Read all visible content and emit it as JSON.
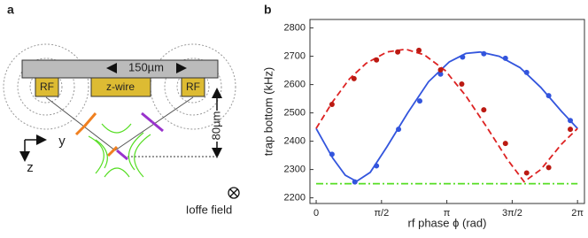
{
  "panel_labels": [
    "a",
    "b"
  ],
  "diagram": {
    "rf_left": "RF",
    "z_wire": "z-wire",
    "rf_right": "RF",
    "width_label": "150µm",
    "height_label": "80µm",
    "axis_y": "y",
    "axis_z": "z",
    "ioffe": "Ioffe field"
  },
  "chart_data": {
    "type": "scatter",
    "y_label": "trap bottom (kHz)",
    "x_label": "rf phase ϕ (rad)",
    "xlim": [
      -0.15,
      6.45
    ],
    "ylim": [
      2180,
      2830
    ],
    "xticks": [
      0,
      {
        "value": 1.5708,
        "label": "π/2"
      },
      {
        "value": 3.1416,
        "label": "π"
      },
      {
        "value": 4.7124,
        "label": "3π/2"
      },
      {
        "value": 6.2832,
        "label": "2π"
      }
    ],
    "yticks": [
      2200,
      2300,
      2400,
      2500,
      2600,
      2700,
      2800
    ],
    "series": [
      {
        "style": "solid",
        "color": "#3355dd",
        "x": [
          0,
          0.4,
          0.7,
          0.97,
          1.3,
          1.7,
          2.2,
          2.7,
          3.2,
          3.6,
          3.94,
          4.4,
          4.9,
          5.4,
          5.9,
          6.2832
        ],
        "values": [
          2445,
          2340,
          2280,
          2258,
          2290,
          2380,
          2500,
          2610,
          2680,
          2710,
          2715,
          2700,
          2660,
          2590,
          2505,
          2445
        ]
      },
      {
        "style": "dashed",
        "color": "#dd2222",
        "x": [
          0,
          0.4,
          0.8,
          1.2,
          1.7,
          2.15,
          2.6,
          3.1,
          3.6,
          4.1,
          4.6,
          5.0,
          5.4,
          5.9,
          6.2832
        ],
        "values": [
          2445,
          2540,
          2620,
          2675,
          2715,
          2725,
          2705,
          2650,
          2560,
          2450,
          2335,
          2257,
          2300,
          2390,
          2445
        ]
      },
      {
        "style": "dashdot",
        "color": "#55dd22",
        "x": [
          0,
          6.2832
        ],
        "values": [
          2250,
          2250
        ]
      },
      {
        "style": "markers",
        "color": "#3355dd",
        "x": [
          0.38,
          0.93,
          1.45,
          1.98,
          2.49,
          2.99,
          3.52,
          4.03,
          4.55,
          5.06,
          5.59,
          6.11
        ],
        "values": [
          2354,
          2256,
          2313,
          2442,
          2542,
          2637,
          2697,
          2709,
          2693,
          2643,
          2561,
          2473
        ]
      },
      {
        "style": "markers",
        "color": "#bb1a12",
        "x": [
          0.38,
          0.91,
          1.45,
          1.96,
          2.47,
          2.99,
          3.5,
          4.03,
          4.55,
          5.06,
          5.59,
          6.11
        ],
        "values": [
          2530,
          2621,
          2687,
          2715,
          2721,
          2652,
          2602,
          2511,
          2392,
          2288,
          2307,
          2442
        ]
      }
    ]
  }
}
